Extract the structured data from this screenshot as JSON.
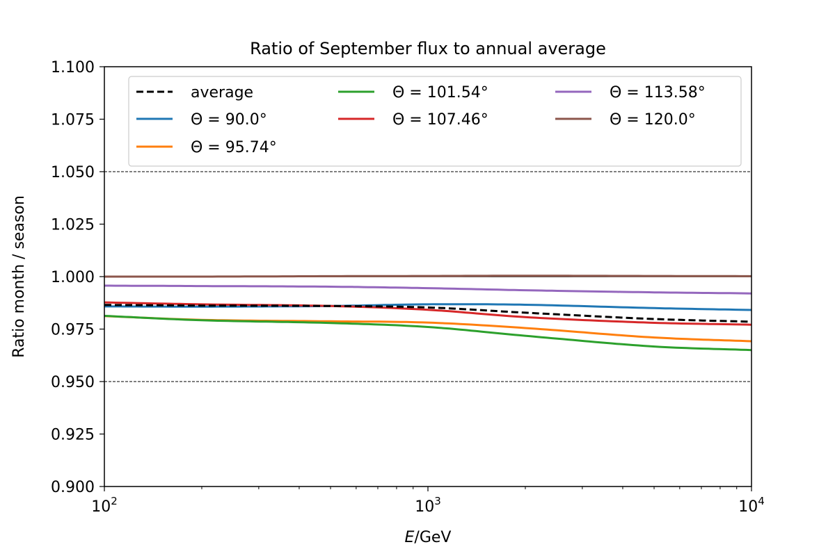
{
  "chart_data": {
    "type": "line",
    "title": "Ratio of September flux to annual average",
    "xlabel_italic": "E",
    "xlabel_rest": "/GeV",
    "ylabel": "Ratio month / season",
    "xscale": "log",
    "xlim": [
      100,
      10000
    ],
    "ylim": [
      0.9,
      1.1
    ],
    "x_ticks": [
      {
        "value": 100,
        "base": "10",
        "exp": "2"
      },
      {
        "value": 1000,
        "base": "10",
        "exp": "3"
      },
      {
        "value": 10000,
        "base": "10",
        "exp": "4"
      }
    ],
    "y_ticks": [
      {
        "value": 0.9,
        "label": "0.900"
      },
      {
        "value": 0.925,
        "label": "0.925"
      },
      {
        "value": 0.95,
        "label": "0.950"
      },
      {
        "value": 0.975,
        "label": "0.975"
      },
      {
        "value": 1.0,
        "label": "1.000"
      },
      {
        "value": 1.025,
        "label": "1.025"
      },
      {
        "value": 1.05,
        "label": "1.050"
      },
      {
        "value": 1.075,
        "label": "1.075"
      },
      {
        "value": 1.1,
        "label": "1.100"
      }
    ],
    "reference_lines": [
      {
        "y": 1.05,
        "style": "dashed-thin"
      },
      {
        "y": 1.0,
        "style": "solid"
      },
      {
        "y": 0.95,
        "style": "dashed-thin"
      }
    ],
    "legend_position": "top",
    "legend_columns": 3,
    "x": [
      100,
      200,
      500,
      1000,
      2000,
      5000,
      10000
    ],
    "series": [
      {
        "name": "average",
        "color": "#000000",
        "dash": true,
        "values": [
          0.9865,
          0.9862,
          0.986,
          0.9853,
          0.9828,
          0.9798,
          0.9785
        ]
      },
      {
        "name": "Θ =  90.0°",
        "color": "#1f77b4",
        "dash": false,
        "values": [
          0.9858,
          0.9857,
          0.986,
          0.9868,
          0.9866,
          0.985,
          0.9841
        ]
      },
      {
        "name": "Θ =  95.74°",
        "color": "#ff7f0e",
        "dash": false,
        "values": [
          0.9812,
          0.9794,
          0.9787,
          0.9781,
          0.9755,
          0.971,
          0.9692
        ]
      },
      {
        "name": "Θ =  101.54°",
        "color": "#2ca02c",
        "dash": false,
        "values": [
          0.9813,
          0.9792,
          0.9779,
          0.976,
          0.9718,
          0.9667,
          0.965
        ]
      },
      {
        "name": "Θ =  107.46°",
        "color": "#d62728",
        "dash": false,
        "values": [
          0.9877,
          0.9868,
          0.986,
          0.9842,
          0.9807,
          0.978,
          0.9771
        ]
      },
      {
        "name": "Θ =  113.58°",
        "color": "#9467bd",
        "dash": false,
        "values": [
          0.9957,
          0.9955,
          0.9952,
          0.9945,
          0.9935,
          0.9925,
          0.992
        ]
      },
      {
        "name": "Θ =  120.0°",
        "color": "#8c564b",
        "dash": false,
        "values": [
          1.0,
          1.0,
          1.0002,
          1.0003,
          1.0004,
          1.0003,
          1.0002
        ]
      }
    ]
  }
}
